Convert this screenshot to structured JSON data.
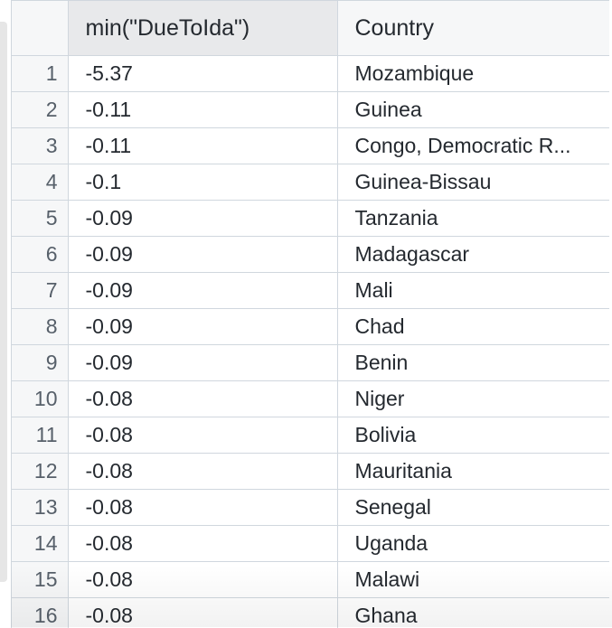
{
  "table": {
    "columns": [
      "min(\"DueToIda\")",
      "Country"
    ],
    "rows": [
      {
        "index": "1",
        "value": "-5.37",
        "country": "Mozambique"
      },
      {
        "index": "2",
        "value": "-0.11",
        "country": "Guinea"
      },
      {
        "index": "3",
        "value": "-0.11",
        "country": "Congo, Democratic R..."
      },
      {
        "index": "4",
        "value": "-0.1",
        "country": "Guinea-Bissau"
      },
      {
        "index": "5",
        "value": "-0.09",
        "country": "Tanzania"
      },
      {
        "index": "6",
        "value": "-0.09",
        "country": "Madagascar"
      },
      {
        "index": "7",
        "value": "-0.09",
        "country": "Mali"
      },
      {
        "index": "8",
        "value": "-0.09",
        "country": "Chad"
      },
      {
        "index": "9",
        "value": "-0.09",
        "country": "Benin"
      },
      {
        "index": "10",
        "value": "-0.08",
        "country": "Niger"
      },
      {
        "index": "11",
        "value": "-0.08",
        "country": "Bolivia"
      },
      {
        "index": "12",
        "value": "-0.08",
        "country": "Mauritania"
      },
      {
        "index": "13",
        "value": "-0.08",
        "country": "Senegal"
      },
      {
        "index": "14",
        "value": "-0.08",
        "country": "Uganda"
      },
      {
        "index": "15",
        "value": "-0.08",
        "country": "Malawi"
      },
      {
        "index": "16",
        "value": "-0.08",
        "country": "Ghana"
      }
    ]
  }
}
